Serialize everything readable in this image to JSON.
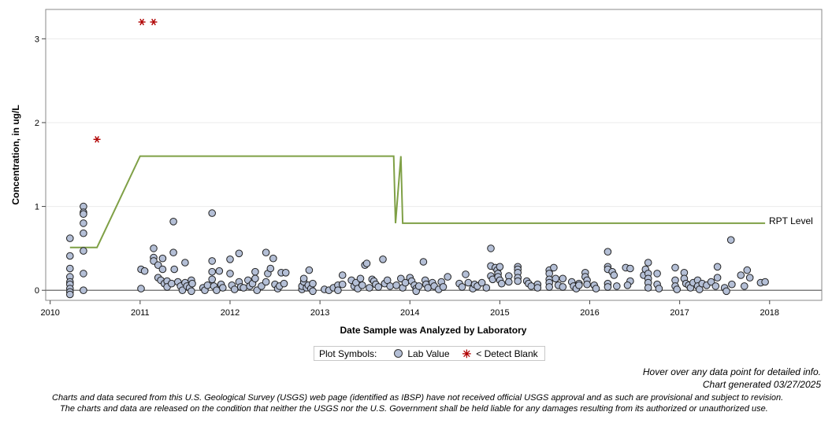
{
  "chart_data": {
    "type": "scatter",
    "xlabel": "Date Sample was Analyzed by Laboratory",
    "ylabel": "Concentration, in ug/L",
    "xlim": [
      2009.95,
      2018.58
    ],
    "ylim": [
      -0.12,
      3.35
    ],
    "x_ticks": [
      "2010",
      "2011",
      "2012",
      "2013",
      "2014",
      "2015",
      "2016",
      "2017",
      "2018"
    ],
    "y_ticks": [
      "0",
      "1",
      "2",
      "3"
    ],
    "grid": "horizontal",
    "series": [
      {
        "name": "Lab Value",
        "marker": "circle",
        "points": [
          [
            2010.22,
            0.62
          ],
          [
            2010.22,
            0.41
          ],
          [
            2010.22,
            0.26
          ],
          [
            2010.22,
            0.16
          ],
          [
            2010.22,
            0.1
          ],
          [
            2010.22,
            0.07
          ],
          [
            2010.22,
            0.02
          ],
          [
            2010.22,
            -0.02
          ],
          [
            2010.22,
            -0.05
          ],
          [
            2010.37,
            1.0
          ],
          [
            2010.37,
            0.93
          ],
          [
            2010.37,
            0.91
          ],
          [
            2010.37,
            0.8
          ],
          [
            2010.37,
            0.68
          ],
          [
            2010.37,
            0.47
          ],
          [
            2010.37,
            0.2
          ],
          [
            2010.37,
            0.0
          ],
          [
            2011.01,
            0.25
          ],
          [
            2011.01,
            0.02
          ],
          [
            2011.05,
            0.23
          ],
          [
            2011.15,
            0.5
          ],
          [
            2011.15,
            0.39
          ],
          [
            2011.15,
            0.35
          ],
          [
            2011.2,
            0.3
          ],
          [
            2011.2,
            0.15
          ],
          [
            2011.23,
            0.12
          ],
          [
            2011.25,
            0.38
          ],
          [
            2011.25,
            0.25
          ],
          [
            2011.27,
            0.08
          ],
          [
            2011.3,
            0.11
          ],
          [
            2011.3,
            0.04
          ],
          [
            2011.35,
            0.08
          ],
          [
            2011.37,
            0.82
          ],
          [
            2011.37,
            0.45
          ],
          [
            2011.38,
            0.25
          ],
          [
            2011.42,
            0.1
          ],
          [
            2011.45,
            0.05
          ],
          [
            2011.47,
            0.0
          ],
          [
            2011.5,
            0.09
          ],
          [
            2011.5,
            0.33
          ],
          [
            2011.52,
            0.05
          ],
          [
            2011.55,
            0.03
          ],
          [
            2011.57,
            0.12
          ],
          [
            2011.58,
            0.08
          ],
          [
            2011.57,
            -0.01
          ],
          [
            2011.7,
            0.03
          ],
          [
            2011.72,
            0.0
          ],
          [
            2011.75,
            0.06
          ],
          [
            2011.8,
            0.92
          ],
          [
            2011.8,
            0.35
          ],
          [
            2011.8,
            0.22
          ],
          [
            2011.8,
            0.13
          ],
          [
            2011.82,
            0.05
          ],
          [
            2011.85,
            0.0
          ],
          [
            2011.88,
            0.23
          ],
          [
            2011.9,
            0.07
          ],
          [
            2011.92,
            0.03
          ],
          [
            2012.0,
            0.37
          ],
          [
            2012.0,
            0.2
          ],
          [
            2012.02,
            0.06
          ],
          [
            2012.05,
            0.01
          ],
          [
            2012.1,
            0.44
          ],
          [
            2012.1,
            0.1
          ],
          [
            2012.12,
            0.04
          ],
          [
            2012.15,
            0.03
          ],
          [
            2012.2,
            0.12
          ],
          [
            2012.22,
            0.05
          ],
          [
            2012.25,
            0.08
          ],
          [
            2012.28,
            0.22
          ],
          [
            2012.28,
            0.14
          ],
          [
            2012.3,
            0.0
          ],
          [
            2012.35,
            0.05
          ],
          [
            2012.4,
            0.45
          ],
          [
            2012.4,
            0.1
          ],
          [
            2012.42,
            0.2
          ],
          [
            2012.45,
            0.26
          ],
          [
            2012.48,
            0.38
          ],
          [
            2012.5,
            0.07
          ],
          [
            2012.53,
            0.02
          ],
          [
            2012.55,
            0.05
          ],
          [
            2012.57,
            0.21
          ],
          [
            2012.6,
            0.08
          ],
          [
            2012.62,
            0.21
          ],
          [
            2012.8,
            0.01
          ],
          [
            2012.8,
            0.05
          ],
          [
            2012.82,
            0.1
          ],
          [
            2012.82,
            0.14
          ],
          [
            2012.85,
            0.03
          ],
          [
            2012.87,
            0.06
          ],
          [
            2012.88,
            0.24
          ],
          [
            2012.9,
            0.02
          ],
          [
            2012.92,
            0.08
          ],
          [
            2012.92,
            -0.01
          ],
          [
            2013.05,
            0.01
          ],
          [
            2013.1,
            0.0
          ],
          [
            2013.15,
            0.03
          ],
          [
            2013.2,
            0.06
          ],
          [
            2013.2,
            0.0
          ],
          [
            2013.25,
            0.07
          ],
          [
            2013.25,
            0.18
          ],
          [
            2013.35,
            0.12
          ],
          [
            2013.38,
            0.05
          ],
          [
            2013.4,
            0.09
          ],
          [
            2013.42,
            0.02
          ],
          [
            2013.45,
            0.14
          ],
          [
            2013.47,
            0.06
          ],
          [
            2013.5,
            0.3
          ],
          [
            2013.52,
            0.32
          ],
          [
            2013.55,
            0.03
          ],
          [
            2013.58,
            0.13
          ],
          [
            2013.6,
            0.11
          ],
          [
            2013.62,
            0.07
          ],
          [
            2013.65,
            0.04
          ],
          [
            2013.7,
            0.37
          ],
          [
            2013.72,
            0.08
          ],
          [
            2013.75,
            0.12
          ],
          [
            2013.78,
            0.05
          ],
          [
            2013.85,
            0.06
          ],
          [
            2013.9,
            0.14
          ],
          [
            2013.92,
            0.03
          ],
          [
            2013.95,
            0.09
          ],
          [
            2014.0,
            0.15
          ],
          [
            2014.02,
            0.11
          ],
          [
            2014.05,
            0.06
          ],
          [
            2014.07,
            0.02
          ],
          [
            2014.07,
            -0.01
          ],
          [
            2014.1,
            0.05
          ],
          [
            2014.15,
            0.34
          ],
          [
            2014.17,
            0.12
          ],
          [
            2014.18,
            0.07
          ],
          [
            2014.2,
            0.03
          ],
          [
            2014.25,
            0.09
          ],
          [
            2014.27,
            0.05
          ],
          [
            2014.32,
            0.01
          ],
          [
            2014.35,
            0.1
          ],
          [
            2014.37,
            0.04
          ],
          [
            2014.42,
            0.16
          ],
          [
            2014.55,
            0.08
          ],
          [
            2014.58,
            0.04
          ],
          [
            2014.62,
            0.19
          ],
          [
            2014.65,
            0.09
          ],
          [
            2014.7,
            0.02
          ],
          [
            2014.72,
            0.07
          ],
          [
            2014.75,
            0.05
          ],
          [
            2014.8,
            0.09
          ],
          [
            2014.85,
            0.03
          ],
          [
            2014.9,
            0.5
          ],
          [
            2014.9,
            0.29
          ],
          [
            2014.9,
            0.17
          ],
          [
            2014.92,
            0.13
          ],
          [
            2014.95,
            0.27
          ],
          [
            2014.97,
            0.24
          ],
          [
            2014.98,
            0.2
          ],
          [
            2014.98,
            0.16
          ],
          [
            2015.0,
            0.28
          ],
          [
            2015.0,
            0.12
          ],
          [
            2015.02,
            0.08
          ],
          [
            2015.1,
            0.17
          ],
          [
            2015.1,
            0.1
          ],
          [
            2015.2,
            0.28
          ],
          [
            2015.2,
            0.25
          ],
          [
            2015.2,
            0.21
          ],
          [
            2015.2,
            0.15
          ],
          [
            2015.2,
            0.11
          ],
          [
            2015.3,
            0.11
          ],
          [
            2015.32,
            0.08
          ],
          [
            2015.35,
            0.05
          ],
          [
            2015.42,
            0.07
          ],
          [
            2015.42,
            0.03
          ],
          [
            2015.55,
            0.24
          ],
          [
            2015.55,
            0.2
          ],
          [
            2015.55,
            0.13
          ],
          [
            2015.55,
            0.09
          ],
          [
            2015.55,
            0.04
          ],
          [
            2015.6,
            0.27
          ],
          [
            2015.62,
            0.14
          ],
          [
            2015.65,
            0.06
          ],
          [
            2015.7,
            0.14
          ],
          [
            2015.7,
            0.04
          ],
          [
            2015.8,
            0.1
          ],
          [
            2015.82,
            0.05
          ],
          [
            2015.85,
            0.02
          ],
          [
            2015.88,
            0.08
          ],
          [
            2015.88,
            0.06
          ],
          [
            2015.95,
            0.21
          ],
          [
            2015.95,
            0.16
          ],
          [
            2015.97,
            0.12
          ],
          [
            2015.97,
            0.07
          ],
          [
            2016.05,
            0.06
          ],
          [
            2016.07,
            0.02
          ],
          [
            2016.2,
            0.46
          ],
          [
            2016.2,
            0.28
          ],
          [
            2016.2,
            0.25
          ],
          [
            2016.2,
            0.08
          ],
          [
            2016.2,
            0.04
          ],
          [
            2016.25,
            0.22
          ],
          [
            2016.27,
            0.18
          ],
          [
            2016.3,
            0.05
          ],
          [
            2016.4,
            0.27
          ],
          [
            2016.45,
            0.26
          ],
          [
            2016.45,
            0.11
          ],
          [
            2016.42,
            0.06
          ],
          [
            2016.6,
            0.18
          ],
          [
            2016.62,
            0.25
          ],
          [
            2016.65,
            0.33
          ],
          [
            2016.65,
            0.2
          ],
          [
            2016.65,
            0.14
          ],
          [
            2016.65,
            0.09
          ],
          [
            2016.65,
            0.03
          ],
          [
            2016.75,
            0.2
          ],
          [
            2016.75,
            0.07
          ],
          [
            2016.77,
            0.02
          ],
          [
            2016.95,
            0.27
          ],
          [
            2016.95,
            0.12
          ],
          [
            2016.95,
            0.05
          ],
          [
            2016.97,
            0.01
          ],
          [
            2017.05,
            0.21
          ],
          [
            2017.05,
            0.14
          ],
          [
            2017.07,
            0.08
          ],
          [
            2017.1,
            0.06
          ],
          [
            2017.12,
            0.03
          ],
          [
            2017.15,
            0.09
          ],
          [
            2017.2,
            0.12
          ],
          [
            2017.2,
            0.05
          ],
          [
            2017.22,
            0.01
          ],
          [
            2017.25,
            0.08
          ],
          [
            2017.3,
            0.06
          ],
          [
            2017.35,
            0.1
          ],
          [
            2017.4,
            0.05
          ],
          [
            2017.42,
            0.28
          ],
          [
            2017.42,
            0.15
          ],
          [
            2017.5,
            0.03
          ],
          [
            2017.52,
            -0.01
          ],
          [
            2017.57,
            0.6
          ],
          [
            2017.58,
            0.07
          ],
          [
            2017.68,
            0.18
          ],
          [
            2017.72,
            0.05
          ],
          [
            2017.75,
            0.24
          ],
          [
            2017.78,
            0.15
          ],
          [
            2017.9,
            0.09
          ],
          [
            2017.95,
            0.1
          ]
        ]
      },
      {
        "name": "< Detect Blank",
        "marker": "asterisk",
        "color": "#b00000",
        "points": [
          [
            2010.52,
            1.8
          ],
          [
            2011.02,
            3.2
          ],
          [
            2011.15,
            3.2
          ]
        ]
      },
      {
        "name": "RPT Level",
        "type": "step-line",
        "color": "#7fa046",
        "points": [
          [
            2010.22,
            0.51
          ],
          [
            2010.52,
            0.51
          ],
          [
            2011.0,
            1.6
          ],
          [
            2013.82,
            1.6
          ],
          [
            2013.84,
            0.8
          ],
          [
            2013.9,
            1.6
          ],
          [
            2013.92,
            0.8
          ],
          [
            2017.95,
            0.8
          ]
        ]
      }
    ],
    "line_label": "RPT Level",
    "legend_position": "bottom-center"
  },
  "legend": {
    "title": "Plot Symbols:",
    "lab_value": "Lab Value",
    "detect_blank": "< Detect Blank"
  },
  "footer": {
    "hover": "Hover over any data point for detailed info.",
    "generated": "Chart generated 03/27/2025",
    "disclaimer_1": "Charts and data secured from this U.S. Geological Survey (USGS) web page (identified as IBSP) have not received official USGS approval and as such are provisional and subject to revision.",
    "disclaimer_2": "The charts and data are released on the condition that neither the USGS nor the U.S. Government shall be held liable for any damages resulting from its authorized or unauthorized use."
  },
  "colors": {
    "lab_fill": "#b4bfd6",
    "lab_stroke": "#222222",
    "detect_blank": "#b00000",
    "rpt_line": "#7fa046",
    "zero_line": "#7f7f7f",
    "grid": "#ebebeb"
  }
}
